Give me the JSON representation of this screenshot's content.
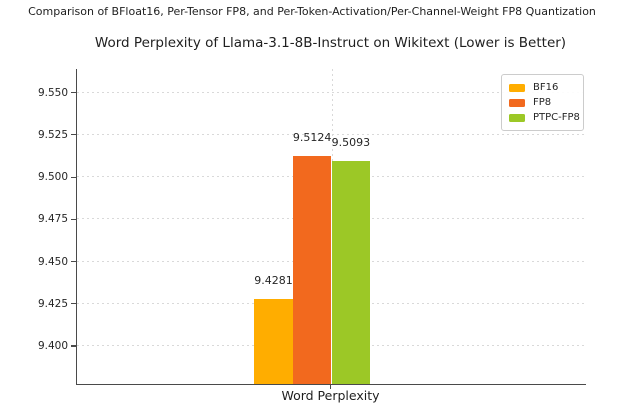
{
  "page": {
    "suptitle": "Comparison of BFloat16, Per-Tensor FP8, and Per-Token-Activation/Per-Channel-Weight FP8 Quantization"
  },
  "chart_data": {
    "type": "bar",
    "title": "Word Perplexity of Llama-3.1-8B-Instruct on Wikitext (Lower is Better)",
    "categories": [
      "Word Perplexity"
    ],
    "series": [
      {
        "name": "BF16",
        "values": [
          9.4281
        ],
        "color": "#FFAD00"
      },
      {
        "name": "FP8",
        "values": [
          9.5124
        ],
        "color": "#F2691E"
      },
      {
        "name": "PTPC-FP8",
        "values": [
          9.5093
        ],
        "color": "#9CC826"
      }
    ],
    "value_labels": [
      "9.4281",
      "9.5124",
      "9.5093"
    ],
    "xlabel": "Word Perplexity",
    "ylabel": "",
    "ylim": [
      9.3775,
      9.564
    ],
    "yticks": [
      9.4,
      9.425,
      9.45,
      9.475,
      9.5,
      9.525,
      9.55
    ],
    "ytick_labels": [
      "9.400",
      "9.425",
      "9.450",
      "9.475",
      "9.500",
      "9.525",
      "9.550"
    ],
    "grid": "dotted-horizontal-and-category-vertical",
    "legend_position": "upper right",
    "legend_entries": [
      "BF16",
      "FP8",
      "PTPC-FP8"
    ]
  }
}
